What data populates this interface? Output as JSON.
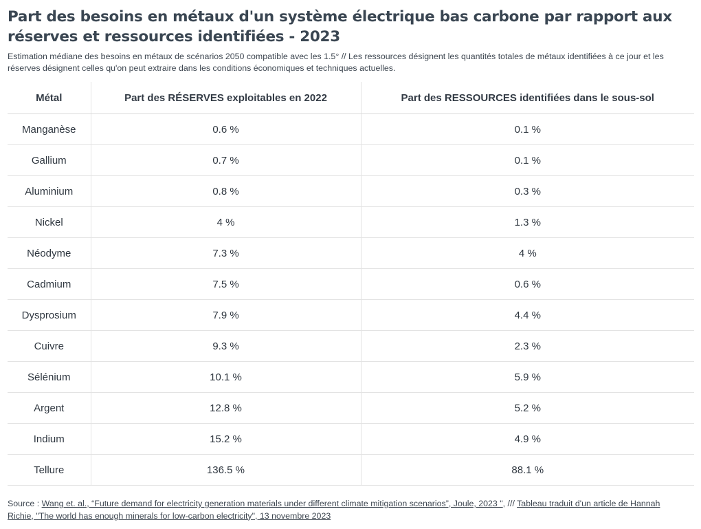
{
  "title": "Part des besoins en métaux d'un système électrique bas carbone par rapport aux réserves et ressources identifiées - 2023",
  "subtitle": "Estimation médiane des besoins en métaux de scénarios 2050 compatible avec les 1.5° // Les ressources désignent les quantités totales de métaux identifiées à ce jour et les réserves désignent celles qu'on peut extraire dans les conditions économiques et techniques actuelles.",
  "chart_data": {
    "type": "table",
    "columns": [
      "Métal",
      "Part des RÉSERVES exploitables en 2022",
      "Part des RESSOURCES identifiées dans le sous-sol"
    ],
    "rows": [
      [
        "Manganèse",
        "0.6 %",
        "0.1 %"
      ],
      [
        "Gallium",
        "0.7 %",
        "0.1 %"
      ],
      [
        "Aluminium",
        "0.8 %",
        "0.3 %"
      ],
      [
        "Nickel",
        "4 %",
        "1.3 %"
      ],
      [
        "Néodyme",
        "7.3 %",
        "4 %"
      ],
      [
        "Cadmium",
        "7.5 %",
        "0.6 %"
      ],
      [
        "Dysprosium",
        "7.9 %",
        "4.4 %"
      ],
      [
        "Cuivre",
        "9.3 %",
        "2.3 %"
      ],
      [
        "Sélénium",
        "10.1 %",
        "5.9 %"
      ],
      [
        "Argent",
        "12.8 %",
        "5.2 %"
      ],
      [
        "Indium",
        "15.2 %",
        "4.9 %"
      ],
      [
        "Tellure",
        "136.5 %",
        "88.1 %"
      ]
    ]
  },
  "source": {
    "prefix": "Source : ",
    "link1": "Wang et. al., “Future demand for electricity generation materials under different climate mitigation scenarios”, Joule, 2023 \"",
    "separator": ", /// ",
    "link2": "Tableau traduit d'un article de Hannah Richie, \"The world has enough minerals for low-carbon electricity\", 13 novembre 2023"
  }
}
